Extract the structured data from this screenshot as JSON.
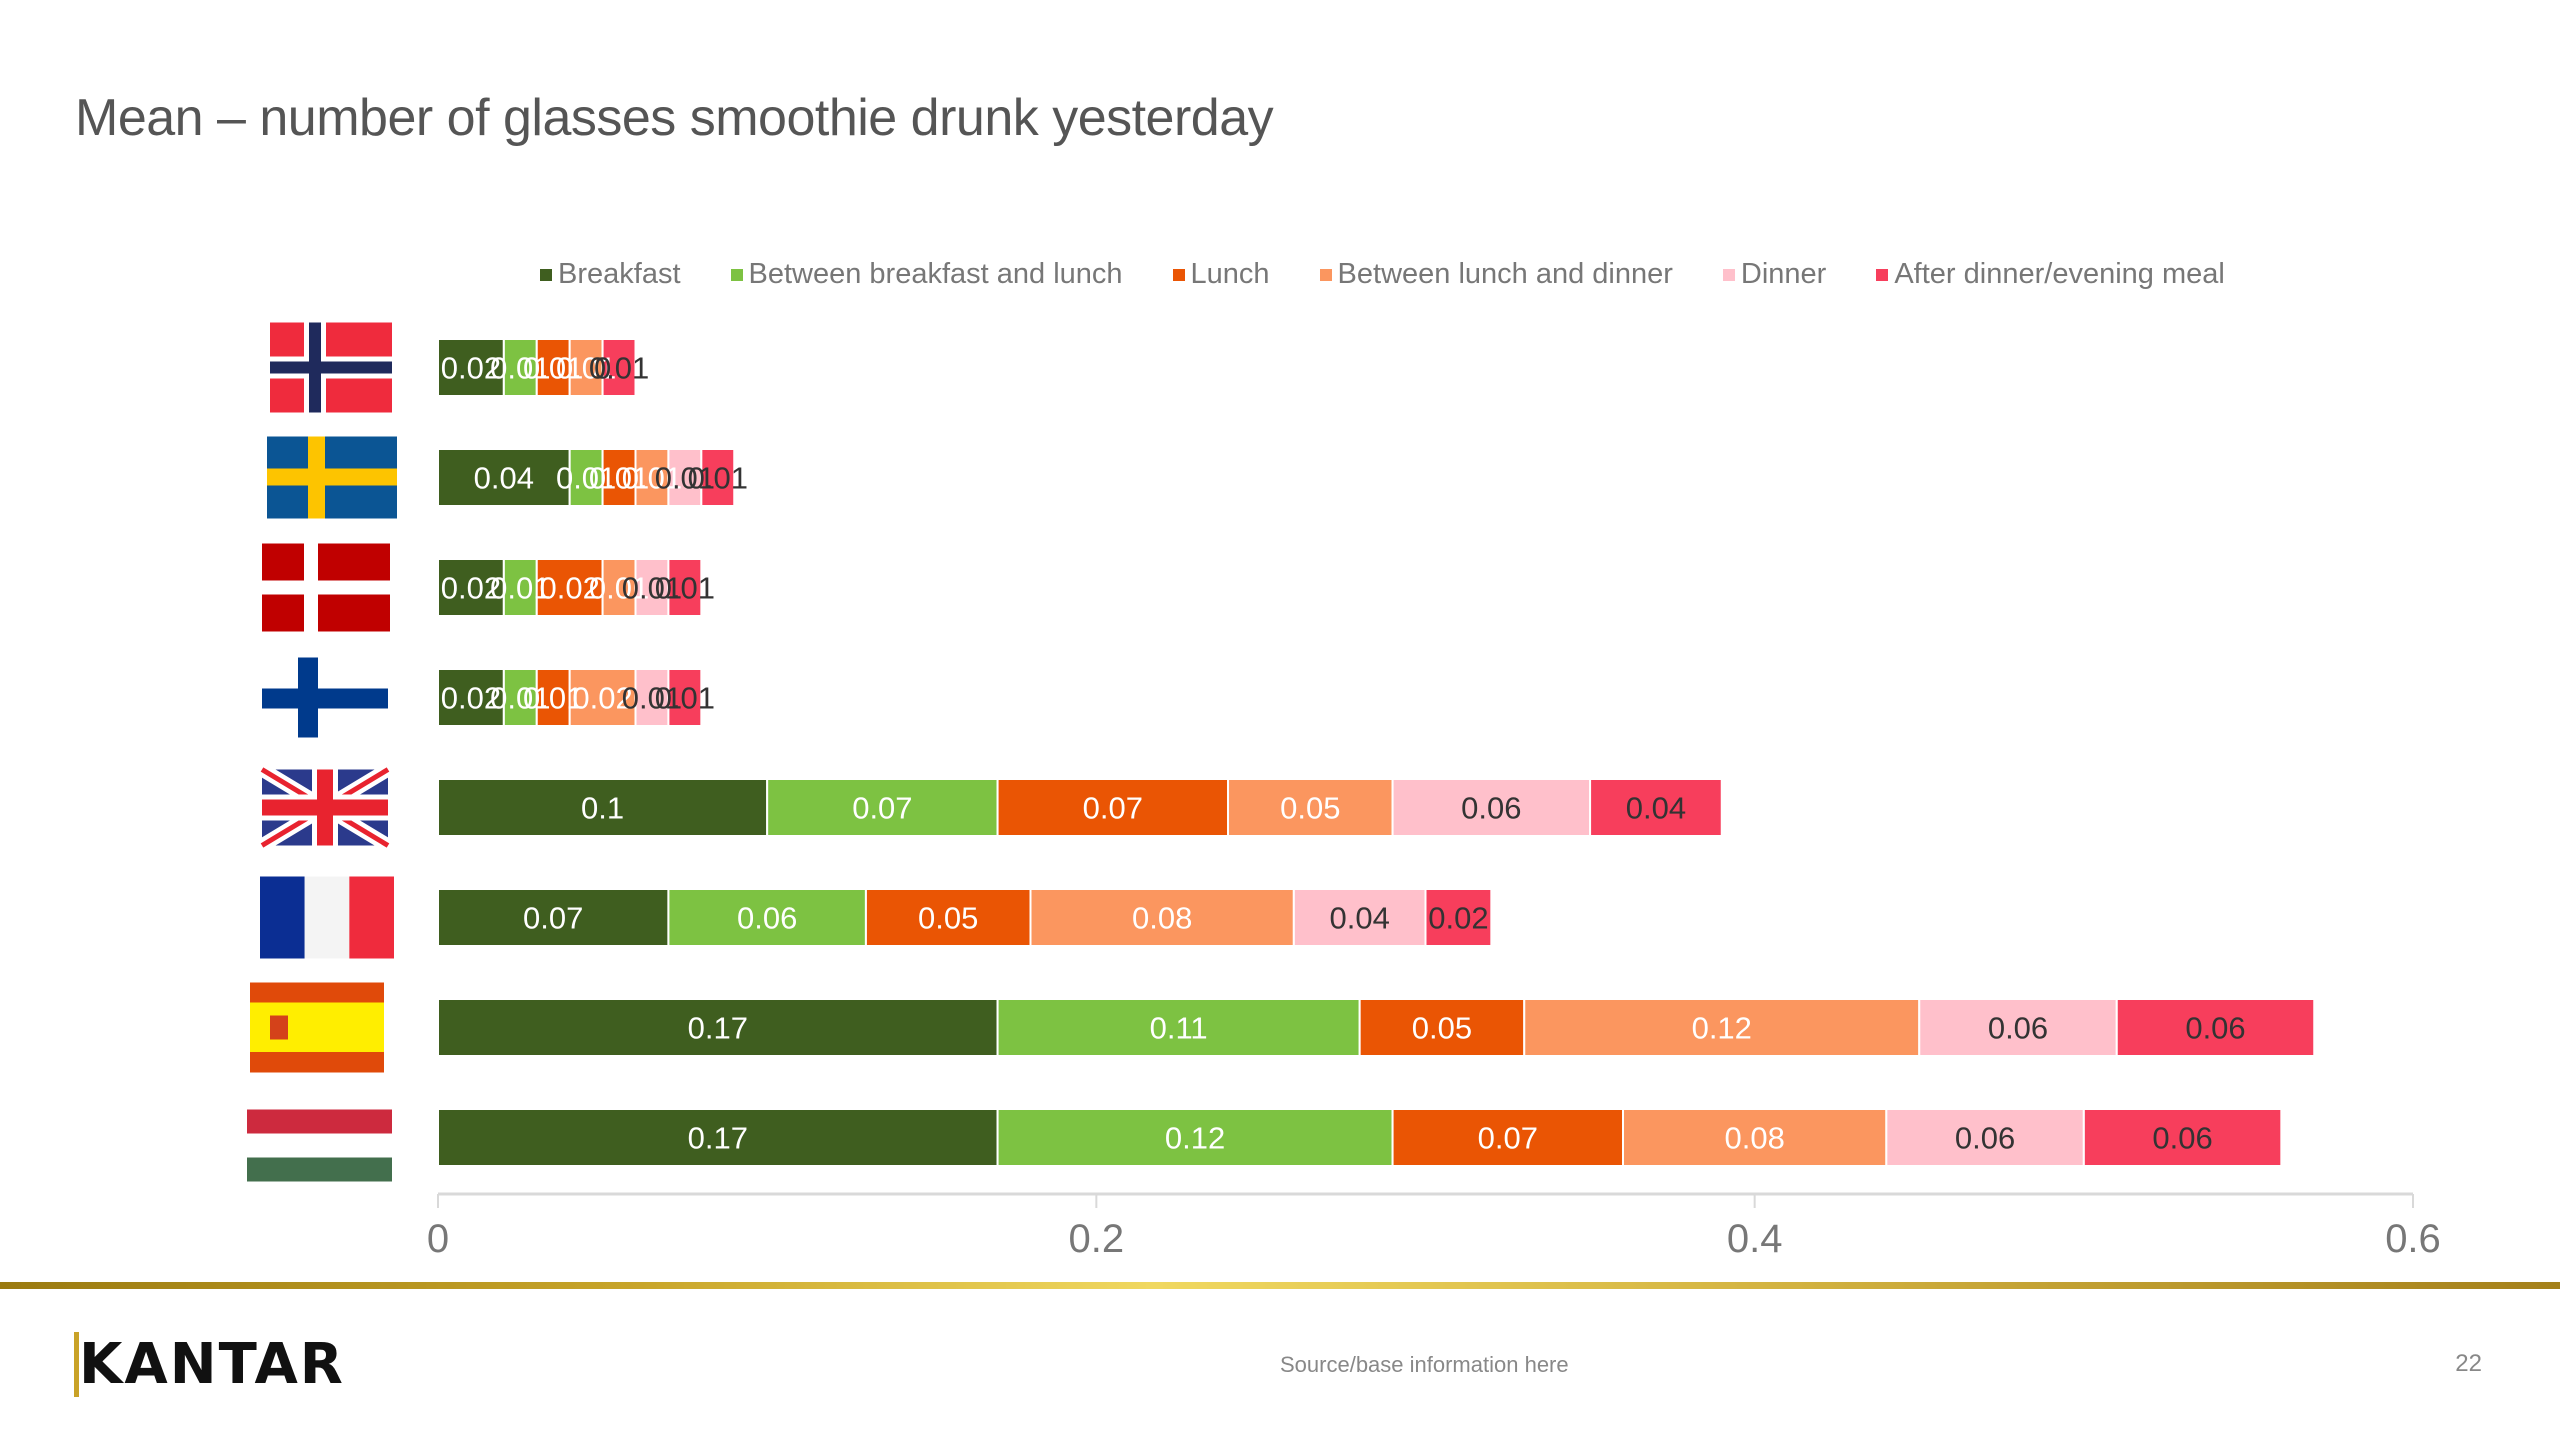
{
  "slide": {
    "title": "Mean – number of glasses smoothie drunk yesterday",
    "source": "Source/base information here",
    "page_number": "22",
    "logo": "KANTAR"
  },
  "colors": {
    "Breakfast": "#3f5e1f",
    "Between breakfast and lunch": "#7dc242",
    "Lunch": "#ea5504",
    "Between lunch and dinner": "#fb965f",
    "Dinner": "#ffc0cb",
    "After dinner/evening meal": "#f73e5c",
    "accent_gold": "#c9a227"
  },
  "chart_data": {
    "type": "bar",
    "orientation": "horizontal",
    "stacked": true,
    "title": "Mean – number of glasses smoothie drunk yesterday",
    "xlabel": "",
    "ylabel": "",
    "xlim": [
      0,
      0.6
    ],
    "xticks": [
      "0",
      "0.2",
      "0.4",
      "0.6"
    ],
    "legend_position": "top",
    "grid": false,
    "categories": [
      "Norway",
      "Sweden",
      "Denmark",
      "Finland",
      "United Kingdom",
      "France",
      "Spain",
      "Hungary"
    ],
    "series": [
      {
        "name": "Breakfast",
        "values": [
          0.02,
          0.04,
          0.02,
          0.02,
          0.1,
          0.07,
          0.17,
          0.17
        ],
        "label_color": "light"
      },
      {
        "name": "Between breakfast and lunch",
        "values": [
          0.01,
          0.01,
          0.01,
          0.01,
          0.07,
          0.06,
          0.11,
          0.12
        ],
        "label_color": "light"
      },
      {
        "name": "Lunch",
        "values": [
          0.01,
          0.01,
          0.02,
          0.01,
          0.07,
          0.05,
          0.05,
          0.07
        ],
        "label_color": "light"
      },
      {
        "name": "Between lunch and dinner",
        "values": [
          0.01,
          0.01,
          0.01,
          0.02,
          0.05,
          0.08,
          0.12,
          0.08
        ],
        "label_color": "light"
      },
      {
        "name": "Dinner",
        "values": [
          0,
          0.01,
          0.01,
          0.01,
          0.06,
          0.04,
          0.06,
          0.06
        ],
        "label_color": "dark"
      },
      {
        "name": "After dinner/evening meal",
        "values": [
          0.01,
          0.01,
          0.01,
          0.01,
          0.04,
          0.02,
          0.06,
          0.06
        ],
        "label_color": "dark"
      }
    ]
  }
}
